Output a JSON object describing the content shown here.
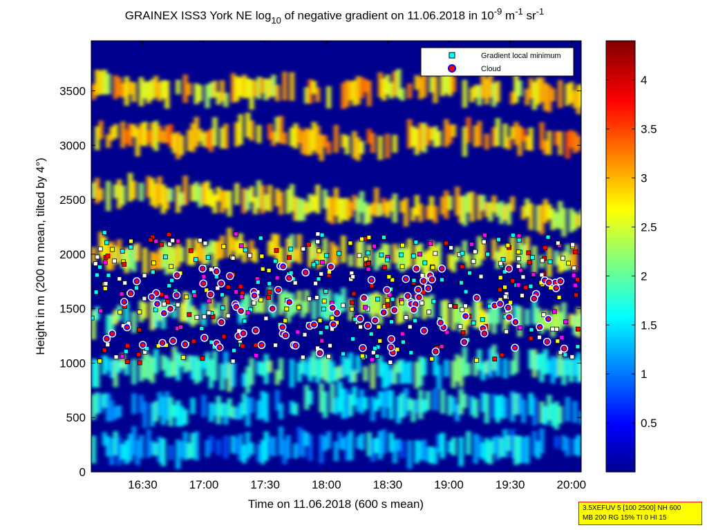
{
  "chart_data": {
    "type": "heatmap",
    "title": {
      "prefix": "GRAINEX ISS3 York NE log",
      "prefix_sub": "10",
      "middle": " of negative gradient on 11.06.2018 in 10",
      "unit_exp1": "-9",
      "unit_m": " m",
      "unit_exp2": "-1",
      "unit_sr": " sr",
      "unit_exp3": "-1"
    },
    "xlabel": "Time on 11.06.2018 (600 s mean)",
    "ylabel": "Height in m (200 m mean, tilted by 4°)",
    "x_ticks": [
      "16:30",
      "17:00",
      "17:30",
      "18:00",
      "18:30",
      "19:00",
      "19:30",
      "20:00"
    ],
    "x_tick_hours": [
      16.5,
      17.0,
      17.5,
      18.0,
      18.5,
      19.0,
      19.5,
      20.0
    ],
    "xlim_hours": [
      16.08,
      20.08
    ],
    "y_ticks": [
      0,
      500,
      1000,
      1500,
      2000,
      2500,
      3000,
      3500
    ],
    "ylim": [
      0,
      3960
    ],
    "colorbar": {
      "ticks": [
        "0.5",
        "1",
        "1.5",
        "2",
        "2.5",
        "3",
        "3.5",
        "4"
      ],
      "tick_values": [
        0.5,
        1,
        1.5,
        2,
        2.5,
        3,
        3.5,
        4
      ],
      "range": [
        0,
        4.4
      ],
      "colormap": "jet"
    },
    "legend": {
      "position": "top-right",
      "entries": [
        {
          "label": "Gradient local minimum",
          "marker": "square",
          "color": "#00ffff"
        },
        {
          "label": "Cloud",
          "marker": "circle",
          "color": "#ff0000",
          "edge": "#0000ff"
        }
      ]
    },
    "layers": [
      {
        "hours": [
          16.1,
          17.0,
          17.5,
          18.2,
          18.8,
          19.4,
          20.05
        ],
        "height": [
          3550,
          3450,
          3520,
          3480,
          3550,
          3500,
          3450
        ],
        "value": 2.8
      },
      {
        "hours": [
          16.1,
          16.8,
          17.4,
          18.0,
          18.6,
          19.2,
          20.05
        ],
        "height": [
          3100,
          3050,
          3150,
          3000,
          3050,
          3100,
          3000
        ],
        "value": 3.0
      },
      {
        "hours": [
          16.1,
          16.7,
          17.3,
          18.0,
          18.7,
          19.3,
          20.05
        ],
        "height": [
          2600,
          2550,
          2500,
          2450,
          2400,
          2450,
          2300
        ],
        "value": 2.7
      },
      {
        "hours": [
          16.1,
          16.6,
          17.2,
          18.0,
          18.8,
          19.4,
          20.05
        ],
        "height": [
          2050,
          1950,
          2050,
          2000,
          1950,
          2000,
          1950
        ],
        "value": 2.6
      },
      {
        "hours": [
          16.1,
          16.6,
          17.2,
          17.8,
          18.4,
          19.0,
          20.05
        ],
        "height": [
          1400,
          1450,
          1500,
          1550,
          1500,
          1450,
          1400
        ],
        "value": 2.2
      },
      {
        "hours": [
          16.1,
          16.7,
          17.3,
          18.0,
          18.7,
          19.4,
          20.05
        ],
        "height": [
          950,
          1000,
          900,
          950,
          900,
          1000,
          950
        ],
        "value": 1.8
      },
      {
        "hours": [
          16.1,
          17.0,
          18.0,
          19.0,
          20.05
        ],
        "height": [
          600,
          550,
          650,
          600,
          550
        ],
        "value": 1.5
      },
      {
        "hours": [
          16.1,
          17.0,
          18.0,
          19.0,
          20.05
        ],
        "height": [
          250,
          200,
          250,
          200,
          250
        ],
        "value": 1.3
      }
    ]
  },
  "annotation": {
    "line1": "3.5XEFUV 5 [100 2500] NH 600",
    "line2": "MB 200 RG 15% TI 0 HI 15"
  }
}
